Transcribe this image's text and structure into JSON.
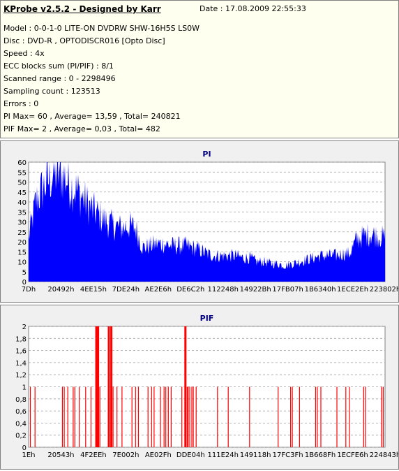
{
  "header": {
    "app_title": "KProbe v2.5.2 - Designed by Karr",
    "date": "Date : 17.08.2009 22:55:33",
    "lines": [
      "Model : 0-0-1-0 LITE-ON DVDRW SHW-16H5S  LS0W",
      "Disc : DVD-R , OPTODISCR016 [Opto Disc]",
      "Speed : 4x",
      "ECC blocks sum (PI/PIF) : 8/1",
      "Scanned range : 0 - 2298496",
      "Sampling count : 123513",
      "Errors : 0",
      "PI Max= 60 , Average= 13,59 , Total= 240821",
      "PIF Max= 2 , Average= 0,03 , Total= 482"
    ]
  },
  "colors": {
    "pi_fill": "#0000ff",
    "pif_bar": "#ff0000",
    "plot_bg": "#ffffff",
    "grid": "#a0a0a0",
    "title": "#000080"
  },
  "chart_data": [
    {
      "type": "area",
      "title": "PI",
      "ylim": [
        0,
        60
      ],
      "yticks": [
        "0",
        "5",
        "10",
        "15",
        "20",
        "25",
        "30",
        "35",
        "40",
        "45",
        "50",
        "55",
        "60"
      ],
      "xticks": [
        "7Dh",
        "20492h",
        "4EE15h",
        "7DE24h",
        "AE2E6h",
        "DE6C2h",
        "112248h",
        "14922Bh",
        "17FB07h",
        "1B6340h",
        "1ECE2Eh",
        "223802h"
      ],
      "grid": true,
      "profile_x": [
        0,
        0.02,
        0.04,
        0.06,
        0.08,
        0.1,
        0.12,
        0.14,
        0.16,
        0.18,
        0.2,
        0.22,
        0.24,
        0.26,
        0.28,
        0.3,
        0.32,
        0.34,
        0.36,
        0.38,
        0.4,
        0.42,
        0.44,
        0.46,
        0.48,
        0.5,
        0.52,
        0.54,
        0.56,
        0.58,
        0.6,
        0.62,
        0.64,
        0.66,
        0.68,
        0.7,
        0.72,
        0.74,
        0.76,
        0.78,
        0.8,
        0.82,
        0.84,
        0.86,
        0.88,
        0.9,
        0.92,
        0.94,
        0.96,
        0.98,
        1.0
      ],
      "profile_y": [
        22,
        40,
        47,
        52,
        55,
        53,
        48,
        45,
        40,
        36,
        33,
        30,
        28,
        27,
        28,
        27,
        17,
        18,
        19,
        19,
        18,
        18,
        18,
        17,
        16,
        14,
        13,
        13,
        13,
        13,
        12,
        12,
        10,
        10,
        9,
        9,
        8,
        9,
        10,
        11,
        12,
        13,
        13,
        13,
        14,
        14,
        21,
        23,
        24,
        23,
        22
      ],
      "max": 60,
      "average": 13.59
    },
    {
      "type": "bar",
      "title": "PIF",
      "ylim": [
        0,
        2
      ],
      "yticks": [
        "0",
        "0,2",
        "0,4",
        "0,6",
        "0,8",
        "1",
        "1,2",
        "1,4",
        "1,6",
        "1,8",
        "2"
      ],
      "xticks": [
        "1Eh",
        "20543h",
        "4F2EEh",
        "7E002h",
        "AE02Fh",
        "DDE04h",
        "111E24h",
        "149118h",
        "17FC3Fh",
        "1B668Fh",
        "1ECFE6h",
        "224843h"
      ],
      "grid": true,
      "x": [
        0.005,
        0.018,
        0.095,
        0.1,
        0.11,
        0.125,
        0.13,
        0.142,
        0.16,
        0.175,
        0.19,
        0.195,
        0.2,
        0.225,
        0.232,
        0.237,
        0.248,
        0.262,
        0.29,
        0.3,
        0.308,
        0.335,
        0.345,
        0.352,
        0.37,
        0.38,
        0.385,
        0.392,
        0.4,
        0.43,
        0.44,
        0.445,
        0.448,
        0.452,
        0.458,
        0.462,
        0.47,
        0.53,
        0.56,
        0.62,
        0.7,
        0.74,
        0.735,
        0.76,
        0.805,
        0.81,
        0.82,
        0.865,
        0.89,
        0.9,
        0.94,
        0.945,
        0.99,
        0.995
      ],
      "values": [
        1,
        1,
        1,
        1,
        1,
        1,
        1,
        1,
        1,
        1,
        2,
        2,
        1,
        2,
        2,
        1,
        1,
        1,
        1,
        1,
        1,
        1,
        1,
        1,
        1,
        1,
        1,
        1,
        1,
        1,
        2,
        1,
        1,
        1,
        1,
        1,
        1,
        1,
        1,
        1,
        1,
        1,
        1,
        1,
        1,
        1,
        1,
        1,
        1,
        1,
        1,
        1,
        1,
        1
      ],
      "max": 2,
      "average": 0.03
    }
  ]
}
